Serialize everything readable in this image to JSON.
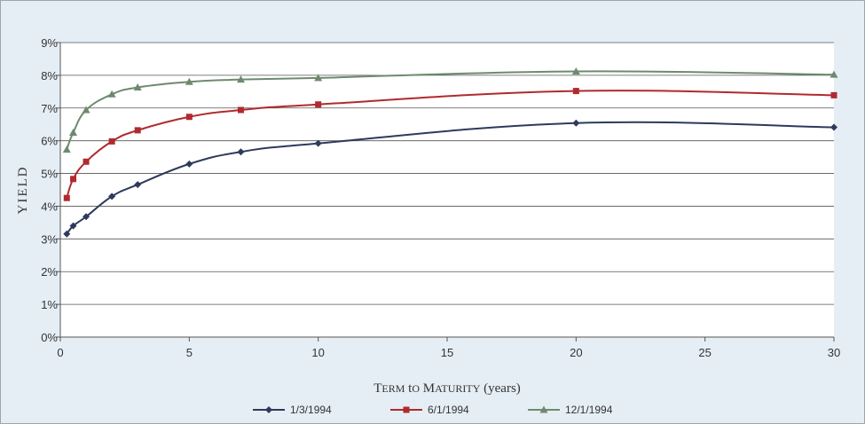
{
  "chart_data": {
    "type": "line",
    "title": "",
    "xlabel": "Term to Maturity (years)",
    "ylabel": "YIELD",
    "xlim": [
      0,
      30
    ],
    "ylim": [
      0,
      9
    ],
    "x_ticks": [
      "0",
      "5",
      "10",
      "15",
      "20",
      "25",
      "30"
    ],
    "y_ticks": [
      "0%",
      "1%",
      "2%",
      "3%",
      "4%",
      "5%",
      "6%",
      "7%",
      "8%",
      "9%"
    ],
    "grid": "horizontal",
    "legend": "bottom",
    "series": [
      {
        "name": "1/3/1994",
        "color": "#2d3a5c",
        "marker": "diamond",
        "x": [
          0.25,
          0.5,
          1,
          2,
          3,
          5,
          7,
          10,
          20,
          30
        ],
        "y": [
          3.15,
          3.4,
          3.68,
          4.3,
          4.66,
          5.29,
          5.66,
          5.92,
          6.54,
          6.41
        ]
      },
      {
        "name": "6/1/1994",
        "color": "#b02a2e",
        "marker": "square",
        "x": [
          0.25,
          0.5,
          1,
          2,
          3,
          5,
          7,
          10,
          20,
          30
        ],
        "y": [
          4.25,
          4.83,
          5.36,
          5.98,
          6.32,
          6.73,
          6.94,
          7.11,
          7.52,
          7.39
        ]
      },
      {
        "name": "12/1/1994",
        "color": "#6e8a6e",
        "marker": "triangle",
        "x": [
          0.25,
          0.5,
          1,
          2,
          3,
          5,
          7,
          10,
          20,
          30
        ],
        "y": [
          5.73,
          6.25,
          6.94,
          7.42,
          7.63,
          7.8,
          7.87,
          7.92,
          8.12,
          8.02
        ]
      }
    ]
  }
}
